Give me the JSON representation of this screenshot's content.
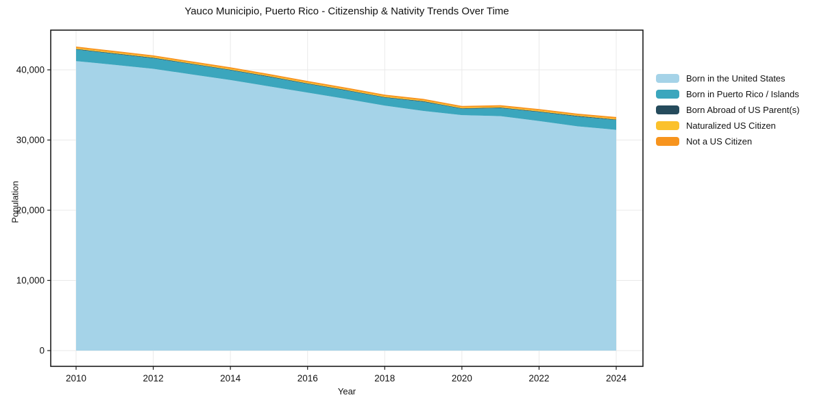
{
  "chart_data": {
    "type": "area",
    "stacked": true,
    "title": "Yauco Municipio, Puerto Rico - Citizenship & Nativity Trends Over Time",
    "xlabel": "Year",
    "ylabel": "Population",
    "x": [
      2010,
      2011,
      2012,
      2013,
      2014,
      2015,
      2016,
      2017,
      2018,
      2019,
      2020,
      2021,
      2022,
      2023,
      2024
    ],
    "series": [
      {
        "id": "born-in-us",
        "name": "Born in the United States",
        "color": "#A5D3E8",
        "values": [
          41250,
          40700,
          40150,
          39350,
          38550,
          37650,
          36750,
          35850,
          34900,
          34150,
          33550,
          33400,
          32700,
          31950,
          31450
        ]
      },
      {
        "id": "born-in-pr-islands",
        "name": "Born in Puerto Rico / Islands",
        "color": "#3BA6BD",
        "values": [
          1650,
          1575,
          1500,
          1450,
          1400,
          1350,
          1250,
          1200,
          1150,
          1300,
          900,
          1150,
          1300,
          1400,
          1400
        ]
      },
      {
        "id": "born-abroad-us-parents",
        "name": "Born Abroad of US Parent(s)",
        "color": "#254B5C",
        "values": [
          80,
          80,
          80,
          80,
          80,
          80,
          80,
          80,
          80,
          80,
          80,
          80,
          80,
          80,
          80
        ]
      },
      {
        "id": "naturalized-citizen",
        "name": "Naturalized US Citizen",
        "color": "#FBC12C",
        "values": [
          130,
          130,
          130,
          130,
          130,
          130,
          130,
          130,
          130,
          130,
          130,
          130,
          130,
          130,
          130
        ]
      },
      {
        "id": "not-us-citizen",
        "name": "Not a US Citizen",
        "color": "#F7941E",
        "values": [
          210,
          210,
          200,
          200,
          200,
          200,
          200,
          200,
          200,
          200,
          200,
          210,
          200,
          200,
          220
        ]
      }
    ],
    "x_ticks": {
      "values": [
        2010,
        2012,
        2014,
        2016,
        2018,
        2020,
        2022,
        2024
      ],
      "labels": [
        "2010",
        "2012",
        "2014",
        "2016",
        "2018",
        "2020",
        "2022",
        "2024"
      ]
    },
    "y_ticks": {
      "values": [
        0,
        10000,
        20000,
        30000,
        40000
      ],
      "labels": [
        "0",
        "10,000",
        "20,000",
        "30,000",
        "40,000"
      ]
    },
    "ylim": [
      0,
      45600
    ],
    "grid": true,
    "legend_position": "right-outside",
    "style": {
      "grid_color": "#e9e9e9",
      "spine_color": "#1a1a1a",
      "tick_color": "#1a1a1a",
      "plot_background": "#ffffff"
    }
  }
}
